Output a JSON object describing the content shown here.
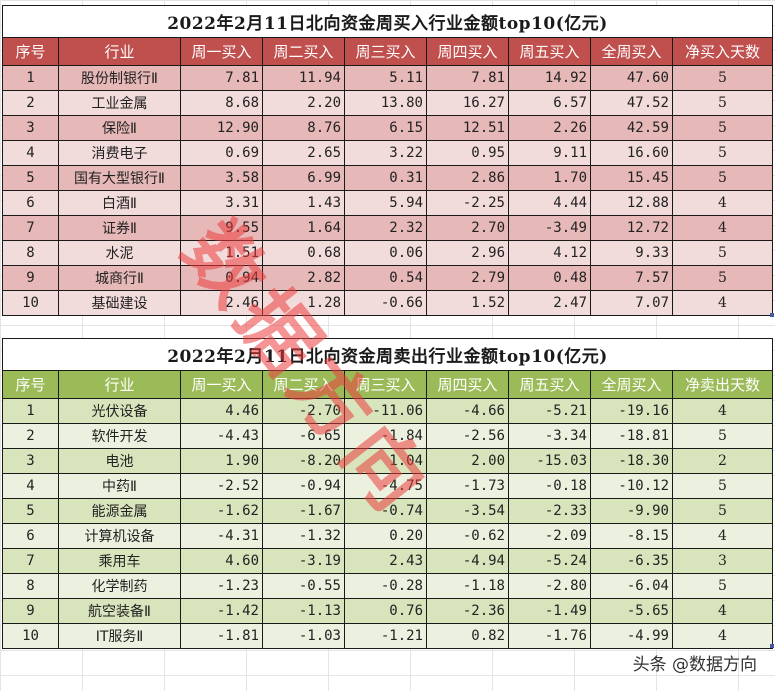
{
  "buy_table": {
    "title": "2022年2月11日北向资金周买入行业金额top10(亿元)",
    "headers": [
      "序号",
      "行业",
      "周一买入",
      "周二买入",
      "周三买入",
      "周四买入",
      "周五买入",
      "全周买入",
      "净买入天数"
    ],
    "rows": [
      {
        "idx": "1",
        "industry": "股份制银行Ⅱ",
        "mon": "7.81",
        "tue": "11.94",
        "wed": "5.11",
        "thu": "7.81",
        "fri": "14.92",
        "week": "47.60",
        "days": "5"
      },
      {
        "idx": "2",
        "industry": "工业金属",
        "mon": "8.68",
        "tue": "2.20",
        "wed": "13.80",
        "thu": "16.27",
        "fri": "6.57",
        "week": "47.52",
        "days": "5"
      },
      {
        "idx": "3",
        "industry": "保险Ⅱ",
        "mon": "12.90",
        "tue": "8.76",
        "wed": "6.15",
        "thu": "12.51",
        "fri": "2.26",
        "week": "42.59",
        "days": "5"
      },
      {
        "idx": "4",
        "industry": "消费电子",
        "mon": "0.69",
        "tue": "2.65",
        "wed": "3.22",
        "thu": "0.95",
        "fri": "9.11",
        "week": "16.60",
        "days": "5"
      },
      {
        "idx": "5",
        "industry": "国有大型银行Ⅱ",
        "mon": "3.58",
        "tue": "6.99",
        "wed": "0.31",
        "thu": "2.86",
        "fri": "1.70",
        "week": "15.45",
        "days": "5"
      },
      {
        "idx": "6",
        "industry": "白酒Ⅱ",
        "mon": "3.31",
        "tue": "1.43",
        "wed": "5.94",
        "thu": "-2.25",
        "fri": "4.44",
        "week": "12.88",
        "days": "4"
      },
      {
        "idx": "7",
        "industry": "证券Ⅱ",
        "mon": "9.55",
        "tue": "1.64",
        "wed": "2.32",
        "thu": "2.70",
        "fri": "-3.49",
        "week": "12.72",
        "days": "4"
      },
      {
        "idx": "8",
        "industry": "水泥",
        "mon": "1.51",
        "tue": "0.68",
        "wed": "0.06",
        "thu": "2.96",
        "fri": "4.12",
        "week": "9.33",
        "days": "5"
      },
      {
        "idx": "9",
        "industry": "城商行Ⅱ",
        "mon": "0.94",
        "tue": "2.82",
        "wed": "0.54",
        "thu": "2.79",
        "fri": "0.48",
        "week": "7.57",
        "days": "5"
      },
      {
        "idx": "10",
        "industry": "基础建设",
        "mon": "2.46",
        "tue": "1.28",
        "wed": "-0.66",
        "thu": "1.52",
        "fri": "2.47",
        "week": "7.07",
        "days": "4"
      }
    ]
  },
  "sell_table": {
    "title": "2022年2月11日北向资金周卖出行业金额top10(亿元)",
    "headers": [
      "序号",
      "行业",
      "周一买入",
      "周二买入",
      "周三买入",
      "周四买入",
      "周五买入",
      "全周买入",
      "净卖出天数"
    ],
    "rows": [
      {
        "idx": "1",
        "industry": "光伏设备",
        "mon": "4.46",
        "tue": "-2.70",
        "wed": "-11.06",
        "thu": "-4.66",
        "fri": "-5.21",
        "week": "-19.16",
        "days": "4"
      },
      {
        "idx": "2",
        "industry": "软件开发",
        "mon": "-4.43",
        "tue": "-6.65",
        "wed": "-1.84",
        "thu": "-2.56",
        "fri": "-3.34",
        "week": "-18.81",
        "days": "5"
      },
      {
        "idx": "3",
        "industry": "电池",
        "mon": "1.90",
        "tue": "-8.20",
        "wed": "1.04",
        "thu": "2.00",
        "fri": "-15.03",
        "week": "-18.30",
        "days": "2"
      },
      {
        "idx": "4",
        "industry": "中药Ⅱ",
        "mon": "-2.52",
        "tue": "-0.94",
        "wed": "-4.75",
        "thu": "-1.73",
        "fri": "-0.18",
        "week": "-10.12",
        "days": "5"
      },
      {
        "idx": "5",
        "industry": "能源金属",
        "mon": "-1.62",
        "tue": "-1.67",
        "wed": "-0.74",
        "thu": "-3.54",
        "fri": "-2.33",
        "week": "-9.90",
        "days": "5"
      },
      {
        "idx": "6",
        "industry": "计算机设备",
        "mon": "-4.31",
        "tue": "-1.32",
        "wed": "0.20",
        "thu": "-0.62",
        "fri": "-2.09",
        "week": "-8.15",
        "days": "4"
      },
      {
        "idx": "7",
        "industry": "乘用车",
        "mon": "4.60",
        "tue": "-3.19",
        "wed": "2.43",
        "thu": "-4.94",
        "fri": "-5.24",
        "week": "-6.35",
        "days": "3"
      },
      {
        "idx": "8",
        "industry": "化学制药",
        "mon": "-1.23",
        "tue": "-0.55",
        "wed": "-0.28",
        "thu": "-1.18",
        "fri": "-2.80",
        "week": "-6.04",
        "days": "5"
      },
      {
        "idx": "9",
        "industry": "航空装备Ⅱ",
        "mon": "-1.42",
        "tue": "-1.13",
        "wed": "0.76",
        "thu": "-2.36",
        "fri": "-1.49",
        "week": "-5.65",
        "days": "4"
      },
      {
        "idx": "10",
        "industry": "IT服务Ⅱ",
        "mon": "-1.81",
        "tue": "-1.03",
        "wed": "-1.21",
        "thu": "0.82",
        "fri": "-1.76",
        "week": "-4.99",
        "days": "4"
      }
    ]
  },
  "watermark": "数据方向",
  "credit": "头条 @数据方向",
  "colors": {
    "buy_header": "#c0504d",
    "buy_row_dark": "#e6b8b7",
    "buy_row_light": "#f2dcdb",
    "sell_header": "#9bbb59",
    "sell_row_dark": "#d8e4bc",
    "sell_row_light": "#ebf1de"
  }
}
